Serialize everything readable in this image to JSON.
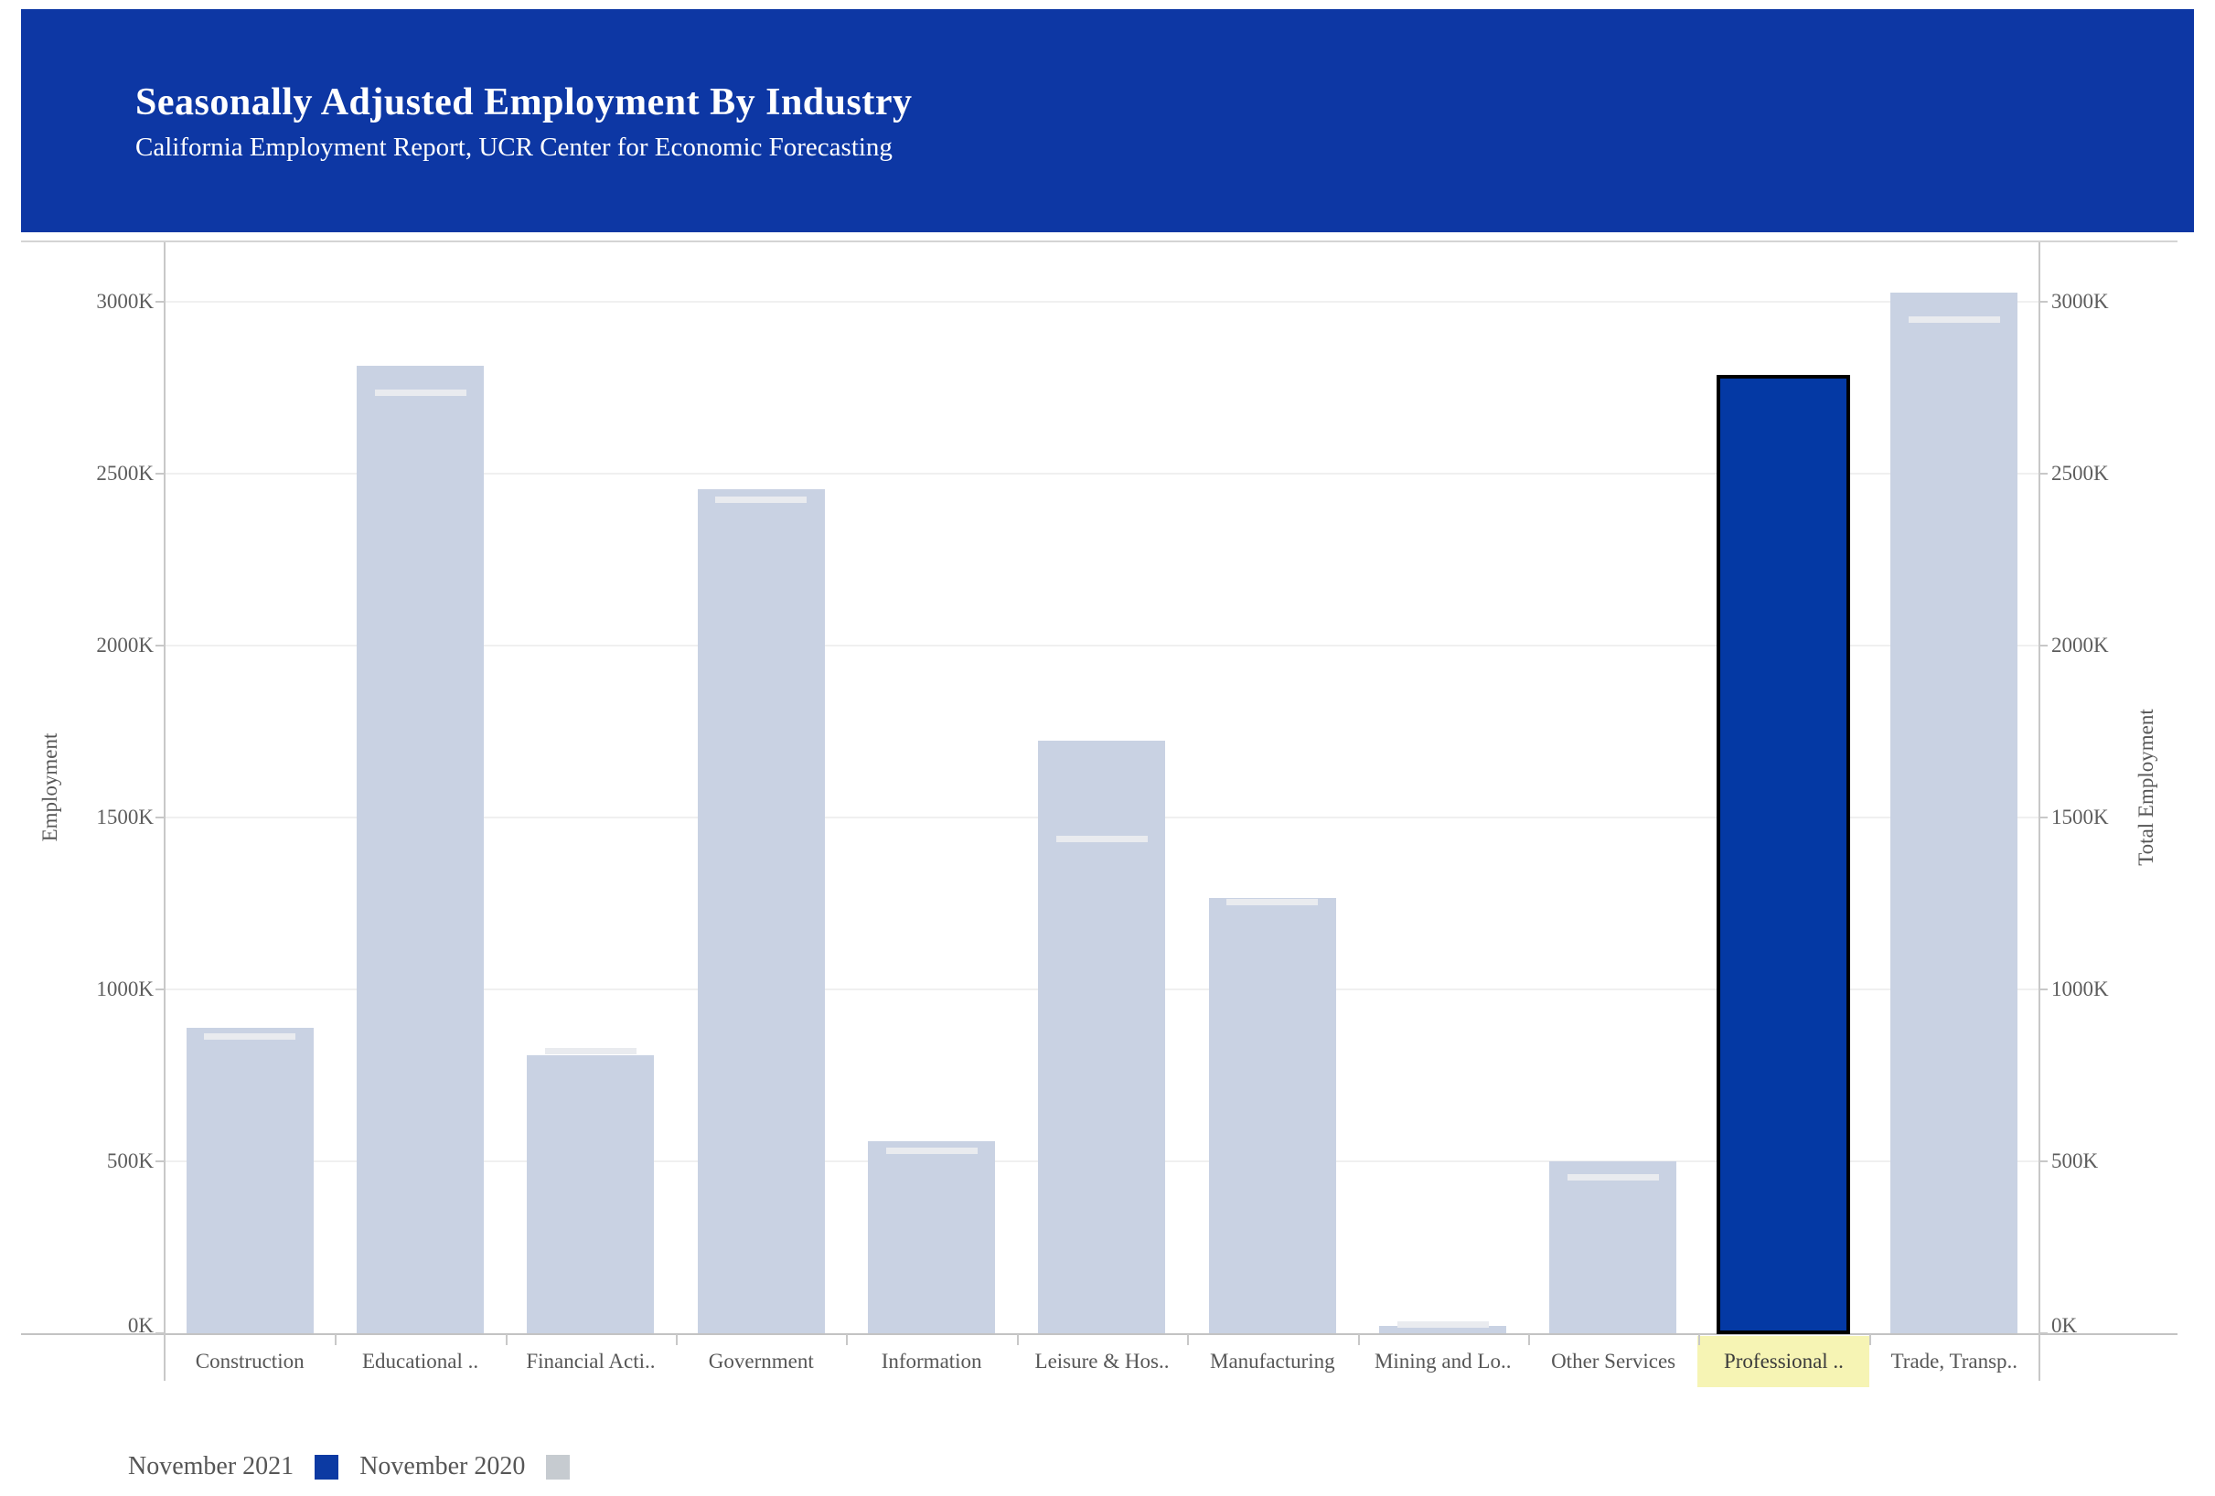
{
  "header": {
    "title": "Seasonally Adjusted Employment By Industry",
    "subtitle": "California Employment Report, UCR Center for Economic Forecasting",
    "background_color": "#0d37a4"
  },
  "axes": {
    "left_title": "Employment",
    "right_title": "Total Employment",
    "tick_labels": [
      "0K",
      "500K",
      "1000K",
      "1500K",
      "2000K",
      "2500K",
      "3000K"
    ]
  },
  "chart_data": {
    "type": "bar",
    "title": "Seasonally Adjusted Employment By Industry",
    "subtitle": "California Employment Report, UCR Center for Economic Forecasting",
    "unit": "thousands of jobs (K)",
    "categories": [
      "Construction",
      "Educational ..",
      "Financial Acti..",
      "Government",
      "Information",
      "Leisure & Hos..",
      "Manufacturing",
      "Mining and Lo..",
      "Other Services",
      "Professional ..",
      "Trade, Transp.."
    ],
    "series": [
      {
        "name": "November 2020",
        "mark_style": "light-bar",
        "color": "#c9d2e3",
        "values_k": [
          888,
          2814,
          808,
          2455,
          558,
          1723,
          1266,
          21,
          500,
          null,
          3027
        ]
      },
      {
        "name": "November 2021",
        "mark_style": "white-line-mark (dark-blue bar when selected)",
        "color": "#0439a4",
        "line_mark_color": "#e9ebef",
        "values_k": [
          864,
          2737,
          822,
          2425,
          532,
          1440,
          1256,
          27,
          455,
          2777,
          2950
        ]
      }
    ],
    "highlight": {
      "category": "Professional ..",
      "series": "November 2021",
      "value_k": 2777,
      "bar_color": "#0439a4",
      "outline_color": "#000000",
      "label_background": "#f6f4b4"
    },
    "ylabel": "Employment",
    "ylabel_right": "Total Employment",
    "yticks_k": [
      0,
      500,
      1000,
      1500,
      2000,
      2500,
      3000
    ],
    "ylim_k": [
      0,
      3170
    ],
    "grid": "horizontal",
    "legend_position": "bottom-left"
  },
  "legend": {
    "items": [
      {
        "label": "November 2021",
        "color": "#0c3aa3"
      },
      {
        "label": "November 2020",
        "color": "#c6cbd0"
      }
    ]
  }
}
